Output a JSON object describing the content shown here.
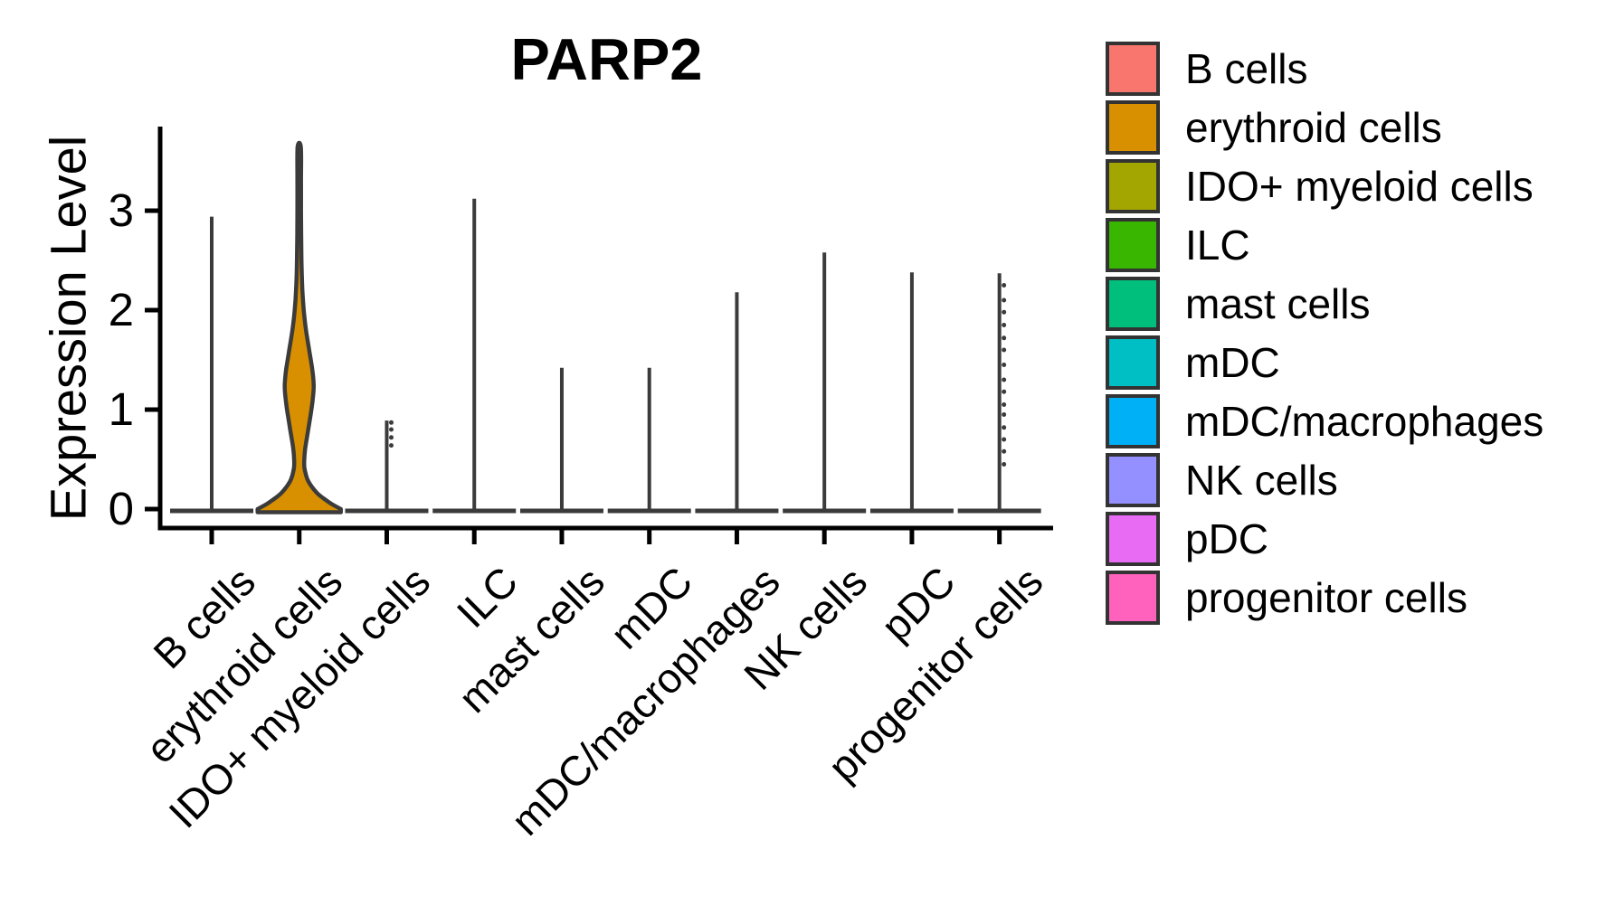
{
  "figure": {
    "background": "#FFFFFF"
  },
  "chart_data": {
    "type": "violin",
    "title": "PARP2",
    "xlabel": "",
    "ylabel": "Expression Level",
    "y_ticks": [
      0,
      1,
      2,
      3
    ],
    "ylim": [
      -0.21,
      3.85
    ],
    "grid": false,
    "legend_position": "right",
    "style": {
      "axis_color": "#000000",
      "violin_outline": "#3B3B3B",
      "text_color": "#000000",
      "legend_box_border": "#333333",
      "background": "#FFFFFF"
    },
    "categories": [
      "B cells",
      "erythroid cells",
      "IDO+ myeloid cells",
      "ILC",
      "mast cells",
      "mDC",
      "mDC/macrophages",
      "NK cells",
      "pDC",
      "progenitor cells"
    ],
    "series": [
      {
        "name": "B cells",
        "color": "#F8766D",
        "max": 2.94,
        "shape": "spike",
        "dots": []
      },
      {
        "name": "erythroid cells",
        "color": "#D89000",
        "max": 3.64,
        "shape": "violin",
        "dots": [],
        "profile": [
          [
            0,
            46
          ],
          [
            0.05,
            36
          ],
          [
            0.1,
            28
          ],
          [
            0.15,
            21
          ],
          [
            0.2,
            16
          ],
          [
            0.25,
            12
          ],
          [
            0.3,
            9
          ],
          [
            0.38,
            6.5
          ],
          [
            0.45,
            5.5
          ],
          [
            0.6,
            6.5
          ],
          [
            0.8,
            10
          ],
          [
            1.0,
            13.5
          ],
          [
            1.15,
            15.5
          ],
          [
            1.25,
            16
          ],
          [
            1.4,
            14.5
          ],
          [
            1.6,
            11
          ],
          [
            1.8,
            7.5
          ],
          [
            2.0,
            5
          ],
          [
            2.2,
            3.5
          ],
          [
            2.5,
            2.5
          ],
          [
            3.0,
            2
          ],
          [
            3.3,
            2
          ],
          [
            3.64,
            1.8
          ]
        ]
      },
      {
        "name": "IDO+ myeloid cells",
        "color": "#A3A500",
        "max": 0.89,
        "shape": "spike",
        "dots": [
          0.64,
          0.72,
          0.8,
          0.87
        ]
      },
      {
        "name": "ILC",
        "color": "#39B600",
        "max": 3.12,
        "shape": "spike",
        "dots": []
      },
      {
        "name": "mast cells",
        "color": "#00BF7D",
        "max": 1.42,
        "shape": "spike",
        "dots": []
      },
      {
        "name": "mDC",
        "color": "#00BFC4",
        "max": 1.42,
        "shape": "spike",
        "dots": []
      },
      {
        "name": "mDC/macrophages",
        "color": "#00B0F6",
        "max": 2.18,
        "shape": "spike",
        "dots": []
      },
      {
        "name": "NK cells",
        "color": "#9590FF",
        "max": 2.58,
        "shape": "spike",
        "dots": []
      },
      {
        "name": "pDC",
        "color": "#E76BF3",
        "max": 2.38,
        "shape": "spike",
        "dots": []
      },
      {
        "name": "progenitor cells",
        "color": "#FF62BC",
        "max": 2.37,
        "shape": "spike",
        "dots": [
          0.45,
          0.58,
          0.7,
          0.82,
          0.95,
          1.05,
          1.18,
          1.3,
          1.45,
          1.6,
          1.72,
          1.85,
          1.98,
          2.1,
          2.25
        ]
      }
    ],
    "legend": [
      {
        "label": "B cells",
        "color": "#F8766D"
      },
      {
        "label": "erythroid cells",
        "color": "#D89000"
      },
      {
        "label": "IDO+ myeloid cells",
        "color": "#A3A500"
      },
      {
        "label": "ILC",
        "color": "#39B600"
      },
      {
        "label": "mast cells",
        "color": "#00BF7D"
      },
      {
        "label": "mDC",
        "color": "#00BFC4"
      },
      {
        "label": "mDC/macrophages",
        "color": "#00B0F6"
      },
      {
        "label": "NK cells",
        "color": "#9590FF"
      },
      {
        "label": "pDC",
        "color": "#E76BF3"
      },
      {
        "label": "progenitor cells",
        "color": "#FF62BC"
      }
    ]
  }
}
